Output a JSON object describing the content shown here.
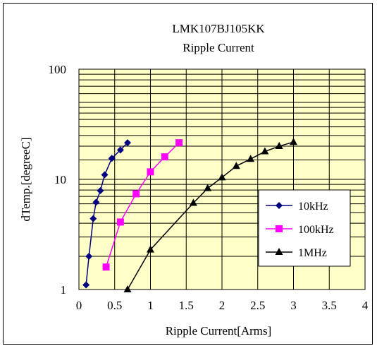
{
  "chart_data": {
    "type": "line",
    "title": "LMK107BJ105KK",
    "subtitle": "Ripple Current",
    "xlabel": "Ripple Current[Arms]",
    "ylabel": "dTemp.[degreeC]",
    "xlim": [
      0,
      4
    ],
    "ylim": [
      1,
      100
    ],
    "yscale": "log",
    "x_ticks": [
      "0",
      "0.5",
      "1",
      "1.5",
      "2",
      "2.5",
      "3",
      "3.5",
      "4"
    ],
    "y_ticks": [
      "1",
      "10",
      "100"
    ],
    "grid": true,
    "legend_position": "right",
    "plot_background": "#ffffc8",
    "series": [
      {
        "name": "10kHz",
        "color": "#000080",
        "marker": "diamond",
        "points": [
          [
            0.1,
            1.1
          ],
          [
            0.14,
            2.0
          ],
          [
            0.2,
            4.4
          ],
          [
            0.24,
            6.2
          ],
          [
            0.3,
            7.9
          ],
          [
            0.36,
            11.0
          ],
          [
            0.46,
            15.5
          ],
          [
            0.58,
            18.5
          ],
          [
            0.68,
            21.5
          ]
        ]
      },
      {
        "name": "100kHz",
        "color": "#ff00ff",
        "marker": "square",
        "points": [
          [
            0.38,
            1.6
          ],
          [
            0.58,
            4.1
          ],
          [
            0.8,
            7.4
          ],
          [
            1.0,
            11.7
          ],
          [
            1.2,
            16.0
          ],
          [
            1.4,
            21.5
          ]
        ]
      },
      {
        "name": "1MHz",
        "color": "#000000",
        "marker": "triangle",
        "points": [
          [
            0.68,
            1.0
          ],
          [
            1.0,
            2.3
          ],
          [
            1.6,
            6.1
          ],
          [
            1.8,
            8.3
          ],
          [
            2.0,
            10.4
          ],
          [
            2.2,
            13.2
          ],
          [
            2.4,
            15.3
          ],
          [
            2.6,
            17.9
          ],
          [
            2.8,
            20.0
          ],
          [
            3.0,
            21.8
          ]
        ]
      }
    ]
  }
}
